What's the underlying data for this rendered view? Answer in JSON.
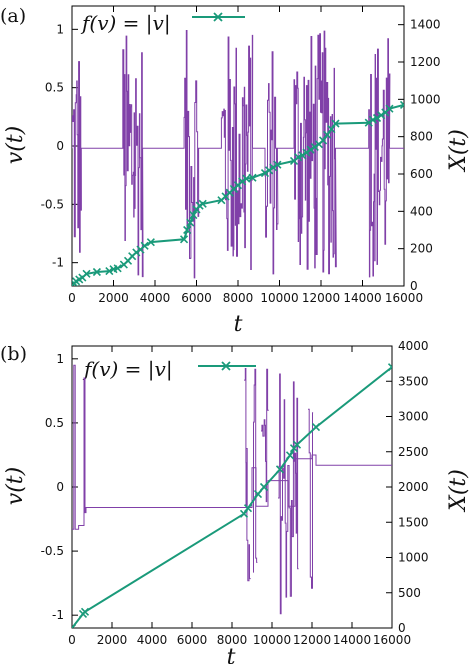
{
  "chart_data": [
    {
      "type": "line",
      "panel_label": "(a)",
      "xlabel": "t",
      "ylabel_left": "v(t)",
      "ylabel_right": "X(t)",
      "legend": "f(v) = |v|",
      "xlim": [
        0,
        16000
      ],
      "ylim_left": [
        -1.2,
        1.2
      ],
      "ylim_right": [
        0,
        1500
      ],
      "xticks": [
        "0",
        "2000",
        "4000",
        "6000",
        "8000",
        "10000",
        "12000",
        "14000",
        "16000"
      ],
      "yticks_left": [
        "-1",
        "-0.5",
        "0",
        "0.5",
        "1"
      ],
      "yticks_right": [
        "0",
        "200",
        "400",
        "600",
        "800",
        "1000",
        "1200",
        "1400"
      ],
      "series": [
        {
          "axis": "left",
          "color": "#8040a8",
          "baseline": -0.02,
          "bursts": [
            [
              0,
              450
            ],
            [
              2450,
              3400
            ],
            [
              5400,
              6100
            ],
            [
              7200,
              8700
            ],
            [
              9300,
              9900
            ],
            [
              10700,
              12700
            ],
            [
              14300,
              15300
            ]
          ],
          "amplitude_range": [
            -1.15,
            1.0
          ]
        },
        {
          "axis": "right",
          "color": "#1a9a7a",
          "marker": "x",
          "x": [
            0,
            100,
            200,
            350,
            500,
            700,
            1200,
            1800,
            2000,
            2200,
            2500,
            2700,
            2900,
            3100,
            3300,
            3500,
            3800,
            5400,
            5550,
            5700,
            5850,
            6000,
            6150,
            6300,
            7200,
            7400,
            7600,
            7800,
            8000,
            8200,
            8400,
            8700,
            9300,
            9500,
            9700,
            9900,
            10700,
            10900,
            11100,
            11300,
            11500,
            11700,
            11900,
            12100,
            12300,
            12500,
            12700,
            14300,
            14500,
            14700,
            14900,
            15100,
            15300,
            16000
          ],
          "y": [
            0,
            15,
            25,
            35,
            45,
            65,
            75,
            80,
            90,
            95,
            115,
            135,
            160,
            180,
            195,
            215,
            235,
            250,
            300,
            340,
            380,
            410,
            430,
            440,
            460,
            480,
            500,
            520,
            540,
            560,
            575,
            580,
            605,
            620,
            635,
            650,
            670,
            690,
            700,
            715,
            730,
            745,
            760,
            780,
            810,
            840,
            870,
            875,
            890,
            900,
            915,
            930,
            950,
            970
          ]
        }
      ]
    },
    {
      "type": "line",
      "panel_label": "(b)",
      "xlabel": "t",
      "ylabel_left": "v(t)",
      "ylabel_right": "X(t)",
      "legend": "f(v) = |v|",
      "xlim": [
        0,
        16000
      ],
      "ylim_left": [
        -1.1,
        1.1
      ],
      "ylim_right": [
        0,
        4000
      ],
      "xticks": [
        "0",
        "2000",
        "4000",
        "6000",
        "8000",
        "10000",
        "12000",
        "14000",
        "16000"
      ],
      "yticks_left": [
        "-1",
        "-0.5",
        "0",
        "0.5",
        "1"
      ],
      "yticks_right": [
        "0",
        "500",
        "1000",
        "1500",
        "2000",
        "2500",
        "3000",
        "3500",
        "4000"
      ],
      "series": [
        {
          "axis": "left",
          "color": "#8040a8",
          "steps": [
            [
              0,
              -0.33
            ],
            [
              90,
              0.95
            ],
            [
              160,
              -0.33
            ],
            [
              330,
              -0.3
            ],
            [
              600,
              0.85
            ],
            [
              650,
              -0.2
            ],
            [
              700,
              -0.16
            ],
            [
              8700,
              0.3
            ],
            [
              8760,
              -0.16
            ],
            [
              9000,
              0.15
            ],
            [
              9200,
              -0.15
            ],
            [
              9800,
              0.05
            ],
            [
              10800,
              -0.15
            ],
            [
              11150,
              0.22
            ],
            [
              12000,
              0.25
            ],
            [
              12200,
              0.17
            ],
            [
              16000,
              0.17
            ]
          ],
          "bursts": [
            [
              8600,
              8900
            ],
            [
              9050,
              9250
            ],
            [
              9450,
              9800
            ],
            [
              10300,
              11300
            ],
            [
              11800,
              12050
            ]
          ],
          "amplitude_range": [
            -1.0,
            1.0
          ]
        },
        {
          "axis": "right",
          "color": "#1a9a7a",
          "marker": "x",
          "x": [
            0,
            550,
            650,
            8600,
            8800,
            9300,
            9600,
            10400,
            10900,
            11100,
            11250,
            12200,
            16000
          ],
          "y": [
            0,
            200,
            230,
            1620,
            1700,
            1900,
            2000,
            2250,
            2450,
            2550,
            2600,
            2850,
            3700
          ]
        }
      ]
    }
  ]
}
